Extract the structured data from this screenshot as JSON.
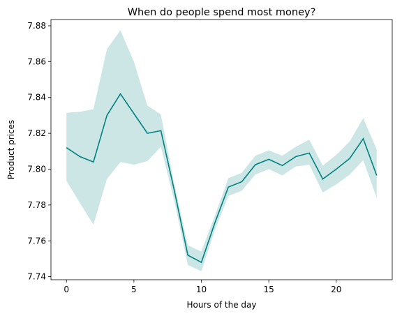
{
  "chart_data": {
    "type": "line",
    "title": "When do people spend most money?",
    "xlabel": "Hours of the day",
    "ylabel": "Product prices",
    "xlim": [
      -1.15,
      24.15
    ],
    "ylim": [
      7.7383,
      7.8835
    ],
    "xticks": [
      0,
      5,
      10,
      15,
      20
    ],
    "yticks": [
      7.74,
      7.76,
      7.78,
      7.8,
      7.82,
      7.84,
      7.86,
      7.88
    ],
    "grid": false,
    "legend": "none",
    "colors": {
      "line": "#008080",
      "band": "#008080",
      "band_opacity": 0.2,
      "axes": "#000000"
    },
    "series": [
      {
        "x": [
          0,
          1,
          2,
          3,
          4,
          5,
          6,
          7,
          8,
          9,
          10,
          11,
          12,
          13,
          14,
          15,
          16,
          17,
          18,
          19,
          20,
          21,
          22,
          23
        ],
        "values": [
          7.812,
          7.807,
          7.804,
          7.83,
          7.842,
          7.831,
          7.82,
          7.8215,
          7.788,
          7.752,
          7.748,
          7.77,
          7.79,
          7.793,
          7.8025,
          7.8055,
          7.802,
          7.807,
          7.809,
          7.7945,
          7.8,
          7.806,
          7.817,
          7.7965
        ],
        "lower": [
          7.7935,
          7.781,
          7.769,
          7.7945,
          7.804,
          7.8025,
          7.8045,
          7.8125,
          7.782,
          7.7465,
          7.743,
          7.766,
          7.785,
          7.788,
          7.797,
          7.8,
          7.7965,
          7.8015,
          7.8025,
          7.787,
          7.7915,
          7.797,
          7.805,
          7.784
        ],
        "upper": [
          7.8315,
          7.832,
          7.8335,
          7.867,
          7.8775,
          7.86,
          7.8355,
          7.8305,
          7.7915,
          7.7575,
          7.754,
          7.774,
          7.795,
          7.798,
          7.8075,
          7.8105,
          7.8075,
          7.8125,
          7.8165,
          7.802,
          7.808,
          7.8155,
          7.8285,
          7.811
        ]
      }
    ]
  }
}
